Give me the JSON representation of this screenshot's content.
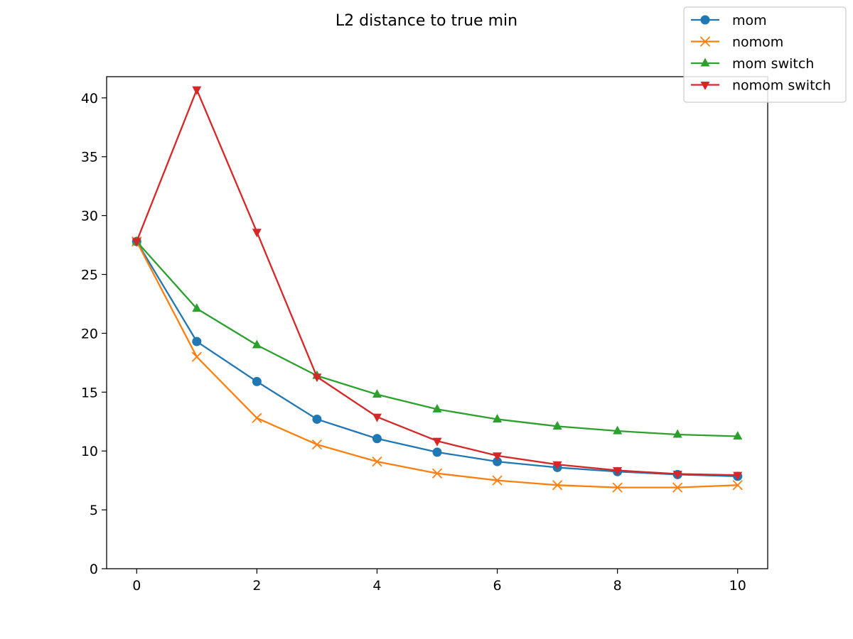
{
  "chart_data": {
    "type": "line",
    "title": "L2 distance to true min",
    "xlabel": "",
    "ylabel": "",
    "x": [
      0,
      1,
      2,
      3,
      4,
      5,
      6,
      7,
      8,
      9,
      10
    ],
    "xlim": [
      -0.5,
      10.5
    ],
    "ylim": [
      0,
      41.8
    ],
    "xticks": [
      0,
      2,
      4,
      6,
      8,
      10
    ],
    "yticks": [
      0,
      5,
      10,
      15,
      20,
      25,
      30,
      35,
      40
    ],
    "grid": false,
    "legend_position": "top-right",
    "series": [
      {
        "name": "mom",
        "color": "#1f77b4",
        "marker": "circle",
        "values": [
          27.8,
          19.3,
          15.9,
          12.7,
          11.05,
          9.9,
          9.1,
          8.6,
          8.25,
          8.0,
          7.85
        ]
      },
      {
        "name": "nomom",
        "color": "#ff7f0e",
        "marker": "x",
        "values": [
          27.8,
          18.0,
          12.8,
          10.55,
          9.1,
          8.1,
          7.5,
          7.1,
          6.9,
          6.9,
          7.1
        ]
      },
      {
        "name": "mom switch",
        "color": "#2ca02c",
        "marker": "triangle-up",
        "values": [
          27.8,
          22.1,
          19.0,
          16.4,
          14.8,
          13.55,
          12.7,
          12.1,
          11.7,
          11.4,
          11.25
        ]
      },
      {
        "name": "nomom switch",
        "color": "#d62728",
        "marker": "triangle-down",
        "values": [
          27.8,
          40.7,
          28.6,
          16.3,
          12.9,
          10.85,
          9.6,
          8.85,
          8.35,
          8.05,
          7.95
        ]
      }
    ]
  }
}
